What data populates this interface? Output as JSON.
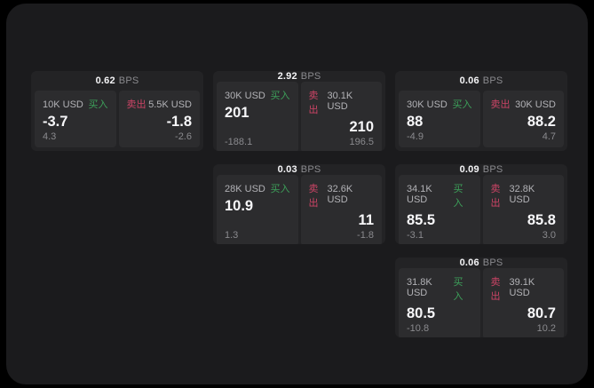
{
  "page": {
    "background": "#000000"
  },
  "colors": {
    "surface": "#1b1b1d",
    "card_bg": "#232325",
    "panel_bg": "#2c2c2e",
    "buy_green": "#3da05a",
    "sell_red": "#cc4466",
    "muted_gray": "#8a8a8e",
    "label_gray": "#b2b2b6"
  },
  "labels": {
    "buy": "买入",
    "sell": "卖出",
    "bps_unit": "BPS"
  },
  "cards": [
    {
      "bps": "0.62",
      "row": 1,
      "col": 1,
      "buy": {
        "amount": "10K USD",
        "value": "-3.7",
        "change": "4.3"
      },
      "sell": {
        "amount": "5.5K USD",
        "value": "-1.8",
        "change": "-2.6"
      }
    },
    {
      "bps": "2.92",
      "row": 1,
      "col": 2,
      "buy": {
        "amount": "30K USD",
        "value": "201",
        "change": "-188.1"
      },
      "sell": {
        "amount": "30.1K USD",
        "value": "210",
        "change": "196.5"
      }
    },
    {
      "bps": "0.06",
      "row": 1,
      "col": 3,
      "buy": {
        "amount": "30K USD",
        "value": "88",
        "change": "-4.9"
      },
      "sell": {
        "amount": "30K USD",
        "value": "88.2",
        "change": "4.7"
      }
    },
    {
      "bps": "0.03",
      "row": 2,
      "col": 2,
      "buy": {
        "amount": "28K USD",
        "value": "10.9",
        "change": "1.3"
      },
      "sell": {
        "amount": "32.6K USD",
        "value": "11",
        "change": "-1.8"
      }
    },
    {
      "bps": "0.09",
      "row": 2,
      "col": 3,
      "buy": {
        "amount": "34.1K USD",
        "value": "85.5",
        "change": "-3.1"
      },
      "sell": {
        "amount": "32.8K USD",
        "value": "85.8",
        "change": "3.0"
      }
    },
    {
      "bps": "0.06",
      "row": 3,
      "col": 3,
      "buy": {
        "amount": "31.8K USD",
        "value": "80.5",
        "change": "-10.8"
      },
      "sell": {
        "amount": "39.1K USD",
        "value": "80.7",
        "change": "10.2"
      }
    }
  ]
}
